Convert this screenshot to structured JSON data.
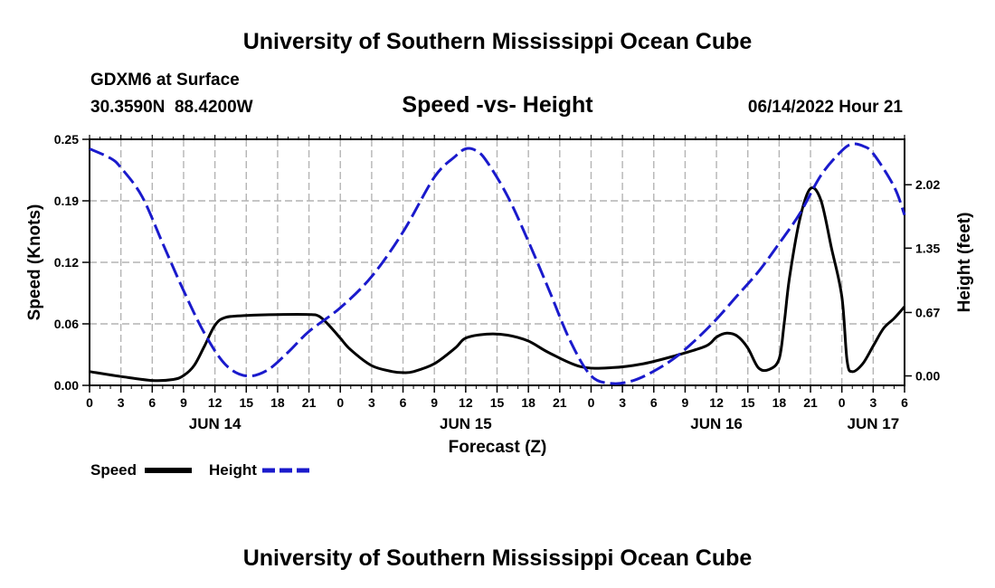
{
  "header": {
    "title": "University of Southern Mississippi Ocean Cube",
    "station": "GDXM6 at Surface",
    "coords": "30.3590N  88.4200W",
    "chart_title": "Speed -vs- Height",
    "datetime": "06/14/2022 Hour 21",
    "footer_title": "University of Southern Mississippi Ocean Cube"
  },
  "legend": {
    "speed_label": "Speed",
    "height_label": "Height"
  },
  "colors": {
    "speed": "#000000",
    "height": "#1a1acc",
    "grid": "#b4b4b4"
  },
  "chart_data": {
    "type": "line",
    "title": "Speed -vs- Height",
    "xlabel": "Forecast (Z)",
    "ylabel_left": "Speed (Knots)",
    "ylabel_right": "Height (feet)",
    "x_range_hours": [
      0,
      78
    ],
    "x_tick_step_hours": 3,
    "x_tick_labels": [
      "0",
      "3",
      "6",
      "9",
      "12",
      "15",
      "18",
      "21",
      "0",
      "3",
      "6",
      "9",
      "12",
      "15",
      "18",
      "21",
      "0",
      "3",
      "6",
      "9",
      "12",
      "15",
      "18",
      "21",
      "0",
      "3",
      "6"
    ],
    "day_labels": [
      {
        "label": "JUN 14",
        "hour": 12
      },
      {
        "label": "JUN 15",
        "hour": 36
      },
      {
        "label": "JUN 16",
        "hour": 60
      },
      {
        "label": "JUN 17",
        "hour": 75
      }
    ],
    "y_left": {
      "min": 0,
      "max": 0.25,
      "ticks": [
        "0.00",
        "0.06",
        "0.12",
        "0.19",
        "0.25"
      ],
      "tick_values": [
        0,
        0.0625,
        0.125,
        0.1875,
        0.25
      ]
    },
    "y_right": {
      "min": -0.1,
      "max": 2.5,
      "ticks": [
        "0.00",
        "0.67",
        "1.35",
        "2.02"
      ],
      "tick_values": [
        0,
        0.67,
        1.35,
        2.02
      ]
    },
    "grid": true,
    "series": [
      {
        "name": "Speed",
        "axis": "left",
        "style": "solid",
        "x": [
          0,
          3,
          6,
          8,
          9,
          10,
          11,
          12,
          13,
          15,
          18,
          21,
          22,
          23,
          24,
          25,
          27,
          29,
          30,
          31,
          33,
          35,
          36,
          38,
          40,
          42,
          44,
          47,
          50,
          53,
          56,
          59,
          60,
          61,
          62,
          63,
          64,
          65,
          66,
          66.5,
          67,
          68,
          69,
          70,
          71,
          72,
          72.5,
          73,
          74,
          75,
          76,
          77,
          78
        ],
        "values": [
          0.014,
          0.009,
          0.005,
          0.006,
          0.01,
          0.02,
          0.04,
          0.061,
          0.069,
          0.071,
          0.072,
          0.072,
          0.07,
          0.06,
          0.048,
          0.036,
          0.02,
          0.014,
          0.013,
          0.014,
          0.022,
          0.038,
          0.048,
          0.052,
          0.051,
          0.045,
          0.033,
          0.019,
          0.018,
          0.022,
          0.03,
          0.04,
          0.049,
          0.053,
          0.05,
          0.038,
          0.018,
          0.016,
          0.027,
          0.065,
          0.11,
          0.17,
          0.2,
          0.188,
          0.14,
          0.09,
          0.025,
          0.014,
          0.022,
          0.04,
          0.058,
          0.068,
          0.08
        ]
      },
      {
        "name": "Height",
        "axis": "right",
        "style": "dashed",
        "x": [
          0,
          2,
          3,
          5,
          7,
          9,
          11,
          13,
          15,
          17,
          19,
          21,
          24,
          27,
          30,
          33,
          35,
          36,
          37,
          38,
          40,
          42,
          44,
          46,
          48,
          50,
          52,
          54,
          56,
          58,
          60,
          62,
          64,
          66,
          68,
          70,
          72,
          73,
          74,
          75,
          77,
          78
        ],
        "values": [
          2.4,
          2.3,
          2.2,
          1.9,
          1.4,
          0.9,
          0.45,
          0.12,
          0.0,
          0.06,
          0.25,
          0.47,
          0.72,
          1.05,
          1.52,
          2.1,
          2.32,
          2.4,
          2.38,
          2.27,
          1.9,
          1.42,
          0.9,
          0.37,
          0.0,
          -0.08,
          -0.05,
          0.05,
          0.19,
          0.38,
          0.6,
          0.85,
          1.1,
          1.4,
          1.72,
          2.12,
          2.38,
          2.45,
          2.43,
          2.35,
          2.0,
          1.7
        ]
      }
    ]
  }
}
